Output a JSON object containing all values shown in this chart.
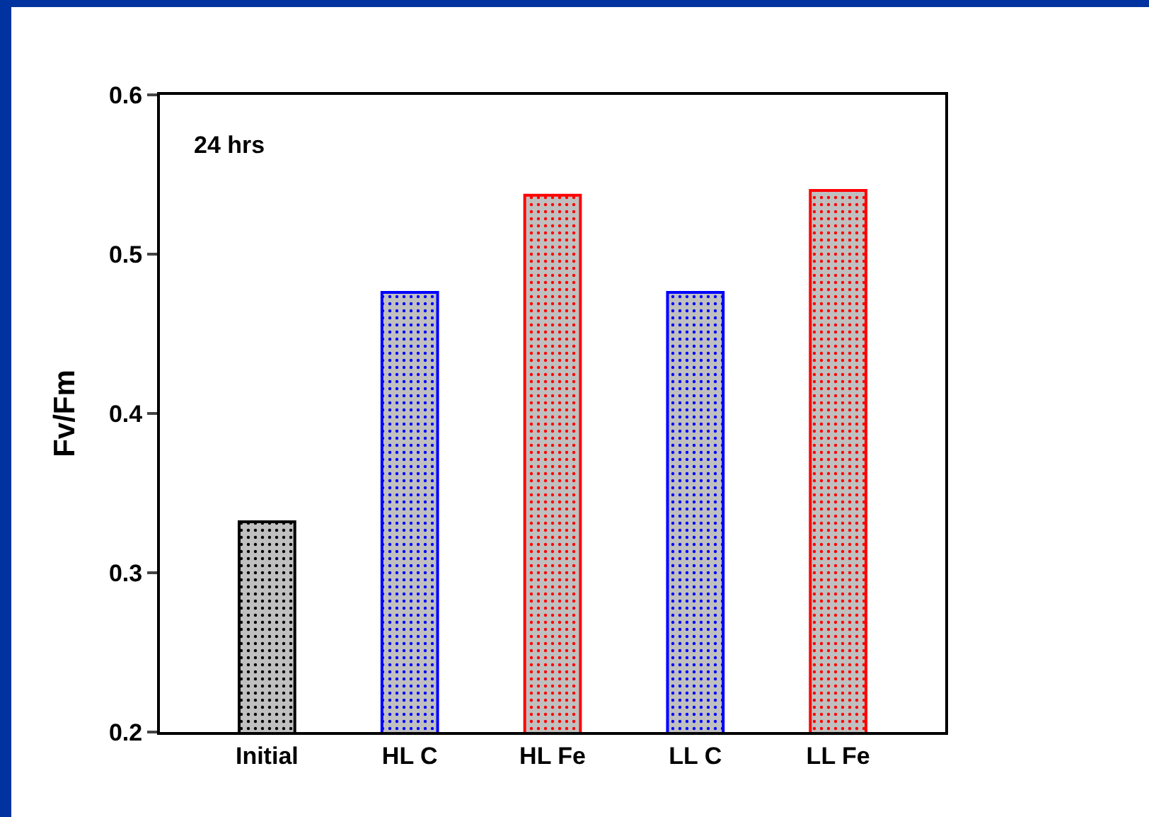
{
  "chart_data": {
    "type": "bar",
    "ylabel": "Fv/Fm",
    "annotations": [
      "24 hrs"
    ],
    "categories": [
      "Initial",
      "HL C",
      "HL Fe",
      "LL C",
      "LL Fe"
    ],
    "values": [
      0.332,
      0.476,
      0.537,
      0.476,
      0.54
    ],
    "colors": [
      "#000000",
      "#0000ff",
      "#ff0000",
      "#0000ff",
      "#ff0000"
    ],
    "ylim": [
      0.2,
      0.6
    ],
    "yticks": [
      0.2,
      0.3,
      0.4,
      0.5,
      0.6
    ],
    "grid": false
  }
}
